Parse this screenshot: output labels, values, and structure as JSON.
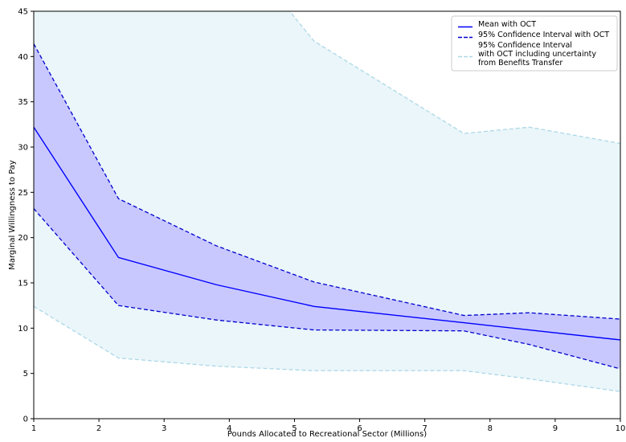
{
  "chart_data": {
    "type": "line",
    "title": "",
    "xlabel": "Pounds Allocated to Recreational Sector (Millions)",
    "ylabel": "Marginal Willingness to Pay",
    "xlim": [
      1,
      10
    ],
    "ylim": [
      0,
      45
    ],
    "x_ticks": [
      1,
      2,
      3,
      4,
      5,
      6,
      7,
      8,
      9,
      10
    ],
    "y_ticks": [
      0,
      5,
      10,
      15,
      20,
      25,
      30,
      35,
      40,
      45
    ],
    "grid": false,
    "legend_position": "top-right",
    "x": [
      1,
      2.3,
      3.8,
      5.3,
      7.6,
      8.6,
      10
    ],
    "series": [
      {
        "name": "Mean with OCT",
        "style": "solid",
        "color": "#0000ff",
        "values": [
          32.2,
          17.8,
          14.8,
          12.4,
          10.6,
          9.8,
          8.7
        ]
      },
      {
        "name": "95% Confidence Interval with OCT",
        "style": "dashed",
        "color": "#0000cc",
        "upper": [
          41.4,
          24.3,
          19.1,
          15.1,
          11.4,
          11.7,
          11.0
        ],
        "lower": [
          23.2,
          12.5,
          10.9,
          9.8,
          9.7,
          8.2,
          5.5
        ],
        "fill": "#c8c8ff"
      },
      {
        "name": "95% Confidence Interval\nwith OCT including uncertainty\nfrom Benefits Transfer",
        "style": "dashed",
        "color": "#add8e6",
        "upper": [
          55,
          55,
          55,
          41.7,
          31.5,
          32.2,
          30.4
        ],
        "lower": [
          12.4,
          6.7,
          5.8,
          5.3,
          5.3,
          4.4,
          3.0
        ],
        "fill": "#eaf6fa"
      }
    ]
  }
}
